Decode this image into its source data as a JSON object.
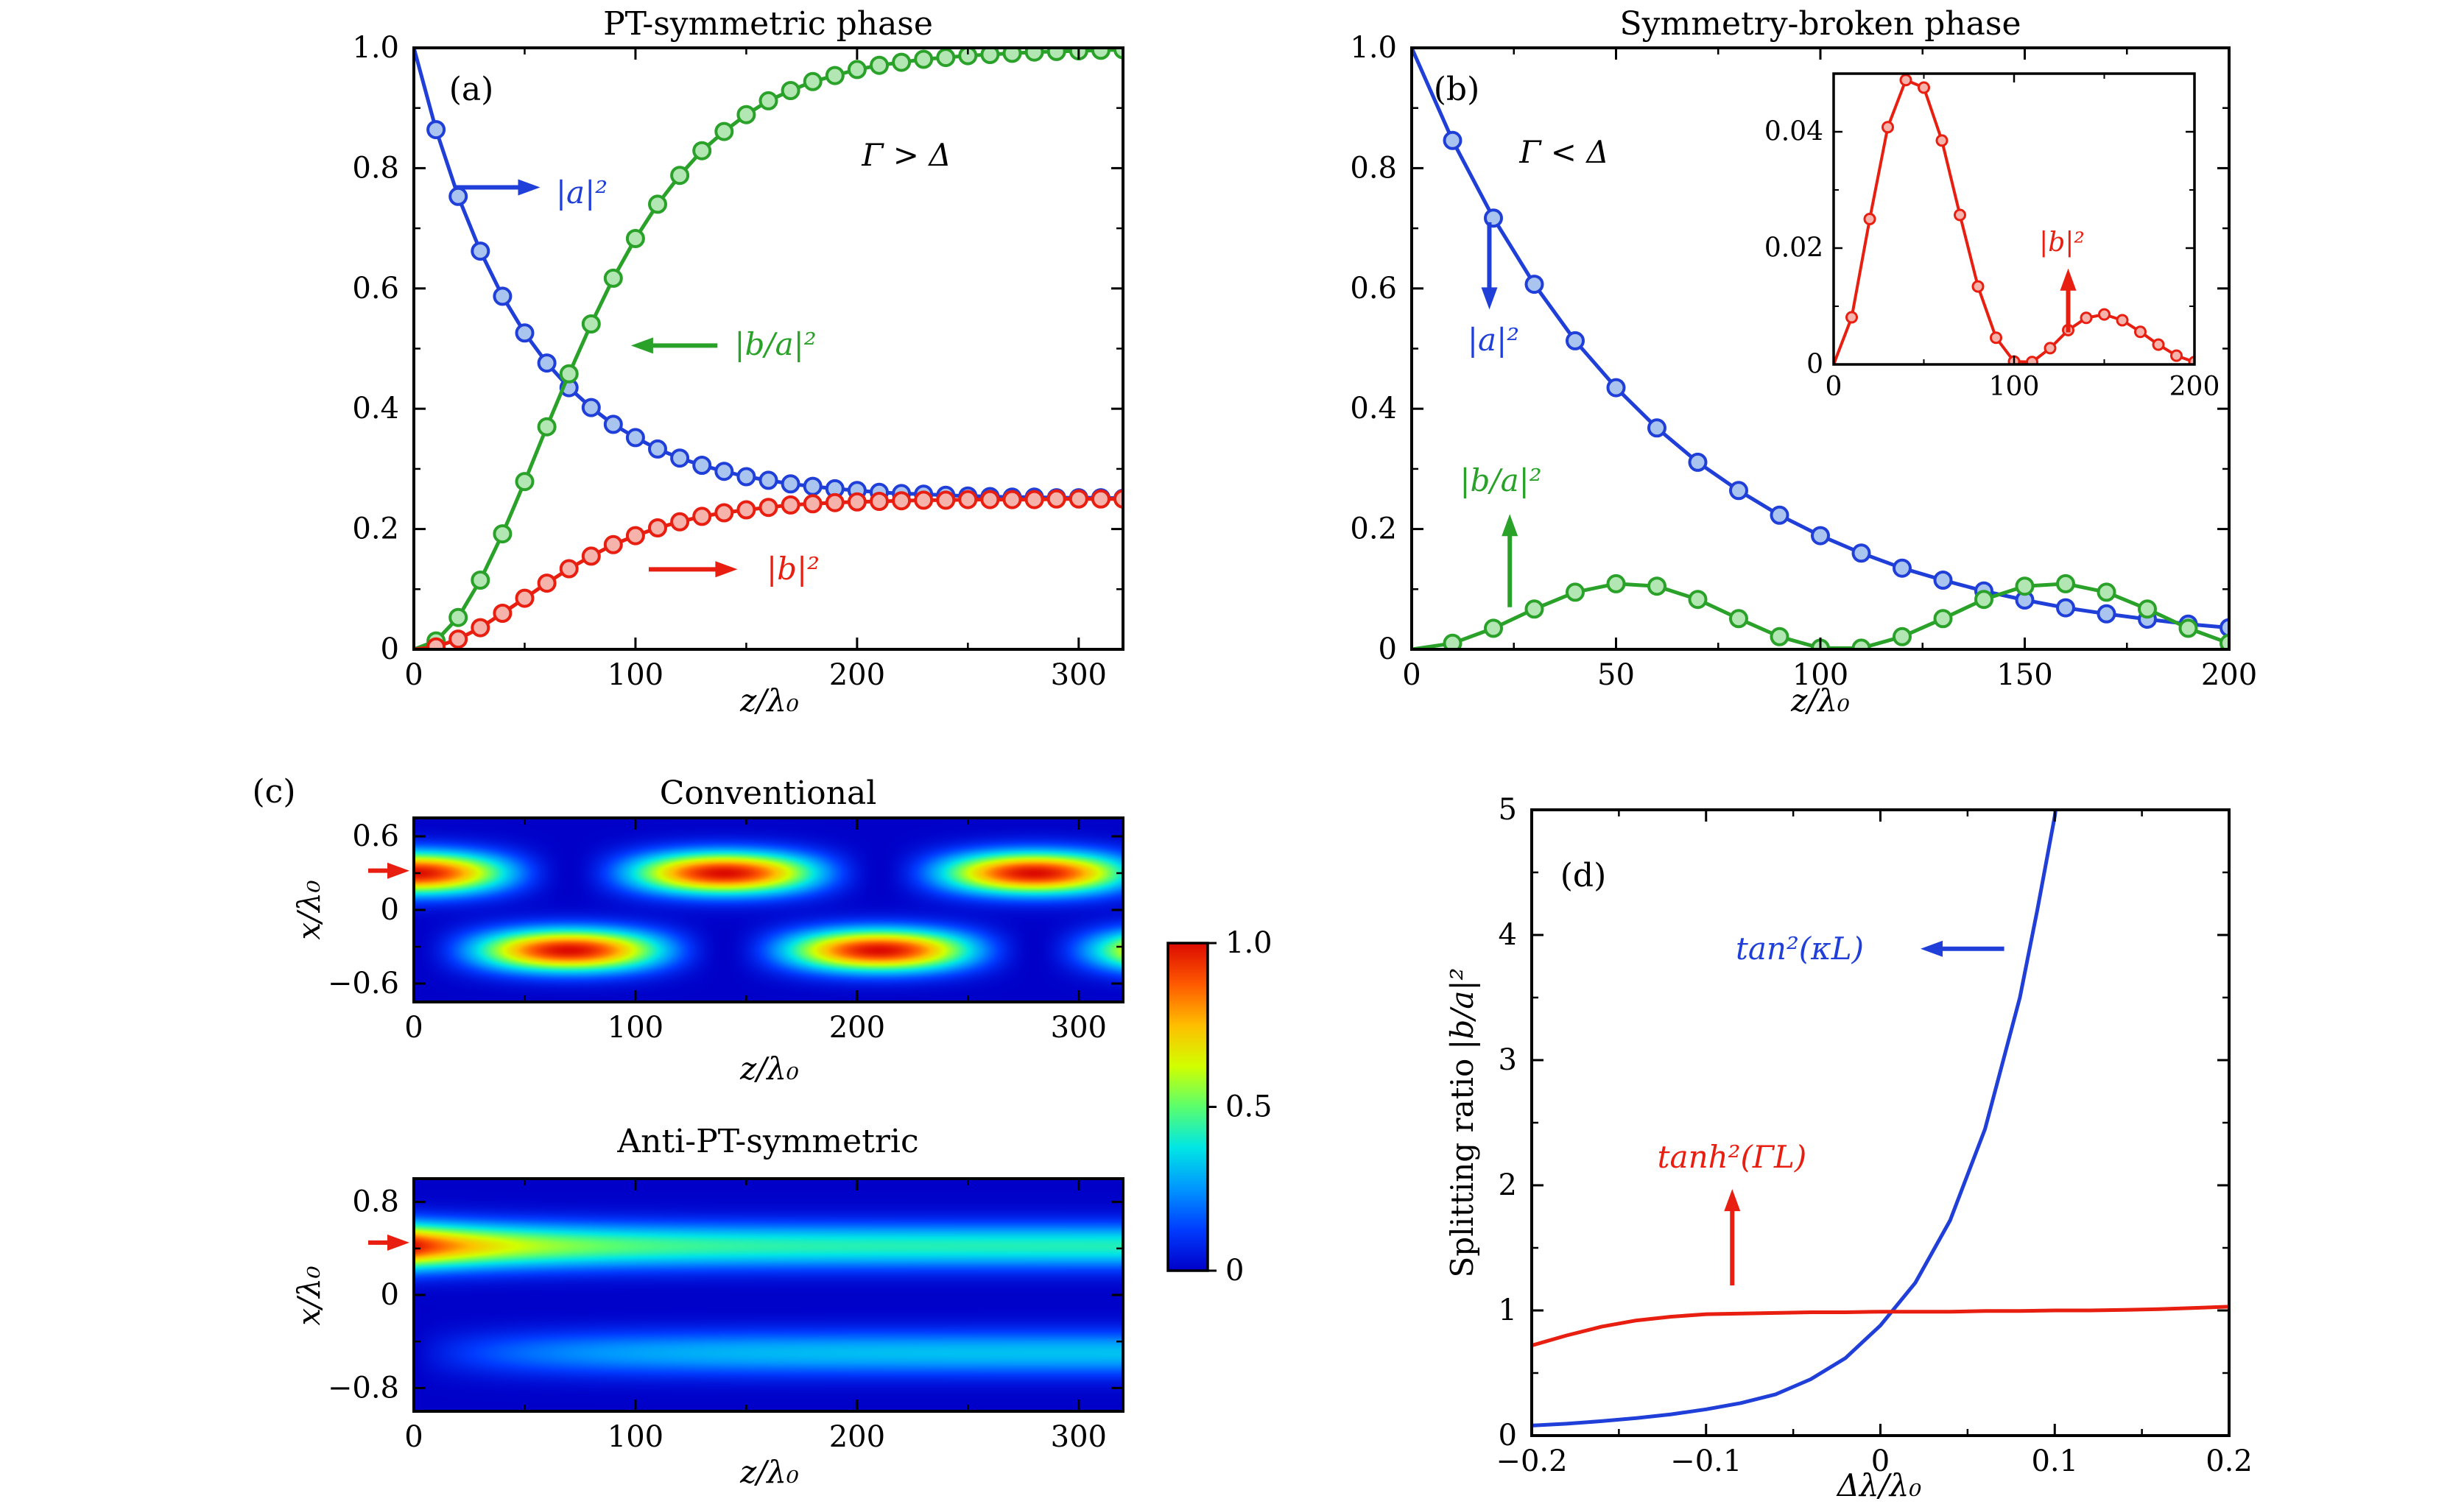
{
  "figure": {
    "panel_labels": {
      "a": "(a)",
      "b": "(b)",
      "c": "(c)",
      "d": "(d)"
    }
  },
  "colors": {
    "blue": "#1f3fd8",
    "blue_fill": "#a9c4ef",
    "green": "#2aa22a",
    "green_fill": "#b2e6b2",
    "red": "#e81e10",
    "red_fill": "#f6b3ab",
    "black": "#000000",
    "frame": "#000000",
    "colormap": [
      [
        0,
        "#0000c8"
      ],
      [
        0.125,
        "#003cff"
      ],
      [
        0.25,
        "#0096ff"
      ],
      [
        0.375,
        "#00e6e6"
      ],
      [
        0.5,
        "#5aff6e"
      ],
      [
        0.625,
        "#d2ff00"
      ],
      [
        0.75,
        "#ffbe00"
      ],
      [
        0.875,
        "#ff5a00"
      ],
      [
        1,
        "#dc0a00"
      ]
    ]
  },
  "chart_data": [
    {
      "panel": "a",
      "type": "line",
      "title": "PT-symmetric phase",
      "xlabel": "z/λ₀",
      "xlim": [
        0,
        320
      ],
      "xticks": [
        0,
        100,
        200,
        300
      ],
      "xticklabels": [
        "0",
        "100",
        "200",
        "300"
      ],
      "ylim": [
        0,
        1
      ],
      "yticks": [
        0,
        0.2,
        0.4,
        0.6,
        0.8,
        1.0
      ],
      "yticklabels": [
        "0",
        "0.2",
        "0.4",
        "0.6",
        "0.8",
        "1.0"
      ],
      "x": [
        0,
        10,
        20,
        30,
        40,
        50,
        60,
        70,
        80,
        90,
        100,
        110,
        120,
        130,
        140,
        150,
        160,
        170,
        180,
        190,
        200,
        210,
        220,
        230,
        240,
        250,
        260,
        270,
        280,
        290,
        300,
        310,
        320
      ],
      "series": [
        {
          "key": "a2",
          "name": "|a|²",
          "color": "blue",
          "fill": "blue_fill",
          "markers": true,
          "values": [
            1.0,
            0.864,
            0.753,
            0.662,
            0.587,
            0.526,
            0.476,
            0.435,
            0.402,
            0.374,
            0.352,
            0.333,
            0.318,
            0.306,
            0.296,
            0.287,
            0.281,
            0.275,
            0.271,
            0.267,
            0.264,
            0.261,
            0.259,
            0.258,
            0.256,
            0.255,
            0.254,
            0.253,
            0.253,
            0.252,
            0.252,
            0.252,
            0.251
          ]
        },
        {
          "key": "ba2",
          "name": "|b/a|²",
          "color": "green",
          "fill": "green_fill",
          "markers": true,
          "values": [
            0,
            0.014,
            0.053,
            0.115,
            0.192,
            0.279,
            0.37,
            0.458,
            0.541,
            0.617,
            0.683,
            0.74,
            0.788,
            0.829,
            0.861,
            0.889,
            0.912,
            0.929,
            0.944,
            0.954,
            0.964,
            0.971,
            0.976,
            0.981,
            0.984,
            0.987,
            0.989,
            0.991,
            0.993,
            0.994,
            0.995,
            0.996,
            0.997
          ]
        },
        {
          "key": "b2",
          "name": "|b|²",
          "color": "red",
          "fill": "red_fill",
          "markers": true,
          "values": [
            0,
            0.004,
            0.017,
            0.036,
            0.06,
            0.085,
            0.11,
            0.134,
            0.155,
            0.174,
            0.189,
            0.202,
            0.212,
            0.221,
            0.227,
            0.232,
            0.236,
            0.24,
            0.242,
            0.244,
            0.245,
            0.246,
            0.247,
            0.248,
            0.248,
            0.249,
            0.249,
            0.249,
            0.249,
            0.25,
            0.25,
            0.25,
            0.25
          ]
        }
      ],
      "annotations": [
        {
          "text": "Γ > Δ",
          "color": "black"
        },
        {
          "text": "|a|²",
          "color": "blue",
          "arrow": {
            "from": [
              18,
              0.768
            ],
            "to": [
              57,
              0.768
            ]
          }
        },
        {
          "text": "|b/a|²",
          "color": "green",
          "arrow": {
            "from": [
              137,
              0.505
            ],
            "to": [
              98,
              0.505
            ]
          }
        },
        {
          "text": "|b|²",
          "color": "red",
          "arrow": {
            "from": [
              106,
              0.133
            ],
            "to": [
              146,
              0.133
            ]
          }
        }
      ]
    },
    {
      "panel": "b",
      "type": "line",
      "title": "Symmetry-broken phase",
      "xlabel": "z/λ₀",
      "xlim": [
        0,
        200
      ],
      "xticks": [
        0,
        50,
        100,
        150,
        200
      ],
      "xticklabels": [
        "0",
        "50",
        "100",
        "150",
        "200"
      ],
      "ylim": [
        0,
        1
      ],
      "yticks": [
        0,
        0.2,
        0.4,
        0.6,
        0.8,
        1.0
      ],
      "yticklabels": [
        "0",
        "0.2",
        "0.4",
        "0.6",
        "0.8",
        "1.0"
      ],
      "x": [
        0,
        10,
        20,
        30,
        40,
        50,
        60,
        70,
        80,
        90,
        100,
        110,
        120,
        130,
        140,
        150,
        160,
        170,
        180,
        190,
        200
      ],
      "series": [
        {
          "key": "a2",
          "name": "|a|²",
          "color": "blue",
          "fill": "blue_fill",
          "markers": true,
          "values": [
            1.0,
            0.846,
            0.717,
            0.607,
            0.513,
            0.435,
            0.368,
            0.311,
            0.264,
            0.223,
            0.189,
            0.16,
            0.135,
            0.115,
            0.097,
            0.082,
            0.069,
            0.059,
            0.05,
            0.042,
            0.036
          ]
        },
        {
          "key": "ba2",
          "name": "|b/a|²",
          "color": "green",
          "fill": "green_fill",
          "markers": true,
          "values": [
            0,
            0.01,
            0.035,
            0.067,
            0.095,
            0.109,
            0.105,
            0.083,
            0.051,
            0.021,
            0.002,
            0.002,
            0.021,
            0.051,
            0.083,
            0.105,
            0.109,
            0.095,
            0.067,
            0.035,
            0.01
          ]
        }
      ],
      "annotations": [
        {
          "text": "Γ < Δ",
          "color": "black"
        },
        {
          "text": "|a|²",
          "color": "blue",
          "arrow": {
            "from": [
              19,
              0.71
            ],
            "to": [
              19,
              0.565
            ]
          }
        },
        {
          "text": "|b/a|²",
          "color": "green",
          "arrow": {
            "from": [
              24,
              0.07
            ],
            "to": [
              24,
              0.225
            ]
          }
        }
      ]
    },
    {
      "panel": "inset",
      "type": "line",
      "title": "",
      "xlabel": "",
      "xlim": [
        0,
        200
      ],
      "xticks": [
        0,
        100,
        200
      ],
      "xticklabels": [
        "0",
        "100",
        "200"
      ],
      "ylim": [
        0,
        0.05
      ],
      "yticks": [
        0,
        0.02,
        0.04
      ],
      "yticklabels": [
        "0",
        "0.02",
        "0.04"
      ],
      "x": [
        0,
        10,
        20,
        30,
        40,
        50,
        60,
        70,
        80,
        90,
        100,
        110,
        120,
        130,
        140,
        150,
        160,
        170,
        180,
        190,
        200
      ],
      "series": [
        {
          "key": "b2",
          "name": "|b|²",
          "color": "red",
          "fill": "red_fill",
          "markers": true,
          "values": [
            0,
            0.0081,
            0.025,
            0.0408,
            0.0489,
            0.0476,
            0.0385,
            0.0257,
            0.0134,
            0.0046,
            0.0005,
            0.0004,
            0.0028,
            0.0059,
            0.008,
            0.0086,
            0.0076,
            0.0056,
            0.0034,
            0.0015,
            0.0004
          ]
        }
      ],
      "annotations": [
        {
          "text": "|b|²",
          "color": "red",
          "arrow": {
            "from": [
              130,
              0.0055
            ],
            "to": [
              130,
              0.0165
            ]
          }
        }
      ]
    },
    {
      "panel": "c1",
      "type": "heatmap",
      "title": "Conventional",
      "xlabel": "z/λ₀",
      "ylabel": "x/λ₀",
      "xlim": [
        0,
        320
      ],
      "xticks": [
        0,
        100,
        200,
        300
      ],
      "xticklabels": [
        "0",
        "100",
        "200",
        "300"
      ],
      "ylim": [
        -0.75,
        0.75
      ],
      "yticks": [
        -0.6,
        0,
        0.6
      ],
      "yticklabels": [
        "−0.6",
        "0",
        "0.6"
      ],
      "zlim": [
        0,
        1
      ],
      "model": {
        "period": 140,
        "top_center": 0.3,
        "bottom_center": -0.33,
        "sigma": 0.12
      },
      "pointer": {
        "x_value": 0.32,
        "color": "red"
      }
    },
    {
      "panel": "c2",
      "type": "heatmap",
      "title": "Anti-PT-symmetric",
      "xlabel": "z/λ₀",
      "ylabel": "x/λ₀",
      "xlim": [
        0,
        320
      ],
      "xticks": [
        0,
        100,
        200,
        300
      ],
      "xticklabels": [
        "0",
        "100",
        "200",
        "300"
      ],
      "ylim": [
        -1,
        1
      ],
      "yticks": [
        -0.8,
        0,
        0.8
      ],
      "yticklabels": [
        "−0.8",
        "0",
        "0.8"
      ],
      "zlim": [
        0,
        1
      ],
      "model": {
        "top_center": 0.42,
        "bottom_center": -0.5,
        "sigma": 0.135,
        "top_base": 0.42,
        "top_amp": 0.58,
        "top_tau": 45,
        "bottom_amp": 0.32,
        "bottom_tau": 55
      },
      "pointer": {
        "x_value": 0.45,
        "color": "red"
      }
    },
    {
      "panel": "d",
      "type": "line",
      "title": "",
      "xlabel": "Δλ/λ₀",
      "ylabel": "Splitting ratio |b/a|²",
      "ylabel_prefix": "Splitting ratio",
      "ylabel_math": "|b/a|²",
      "xlim": [
        -0.2,
        0.2
      ],
      "xticks": [
        -0.2,
        -0.1,
        0,
        0.1,
        0.2
      ],
      "xticklabels": [
        "−0.2",
        "−0.1",
        "0",
        "0.1",
        "0.2"
      ],
      "ylim": [
        0,
        5
      ],
      "yticks": [
        0,
        1,
        2,
        3,
        4,
        5
      ],
      "yticklabels": [
        "0",
        "1",
        "2",
        "3",
        "4",
        "5"
      ],
      "series": [
        {
          "key": "tan",
          "name": "tan²(κL)",
          "color": "blue",
          "markers": false,
          "x": [
            -0.2,
            -0.18,
            -0.16,
            -0.14,
            -0.12,
            -0.1,
            -0.08,
            -0.06,
            -0.04,
            -0.02,
            0,
            0.02,
            0.04,
            0.06,
            0.08,
            0.09,
            0.1,
            0.107
          ],
          "values": [
            0.08,
            0.095,
            0.115,
            0.14,
            0.17,
            0.21,
            0.26,
            0.33,
            0.45,
            0.62,
            0.88,
            1.22,
            1.72,
            2.45,
            3.5,
            4.2,
            4.95,
            5.6
          ]
        },
        {
          "key": "tanh",
          "name": "tanh²(ΓL)",
          "color": "red",
          "markers": false,
          "x": [
            -0.2,
            -0.18,
            -0.16,
            -0.14,
            -0.12,
            -0.1,
            -0.08,
            -0.06,
            -0.04,
            -0.02,
            0,
            0.02,
            0.04,
            0.06,
            0.08,
            0.1,
            0.12,
            0.14,
            0.16,
            0.18,
            0.2
          ],
          "values": [
            0.72,
            0.8,
            0.87,
            0.92,
            0.95,
            0.97,
            0.975,
            0.98,
            0.985,
            0.985,
            0.99,
            0.99,
            0.99,
            0.995,
            0.995,
            1.0,
            1.0,
            1.005,
            1.01,
            1.02,
            1.03
          ]
        }
      ],
      "annotations": [
        {
          "text": "tan²(κL)",
          "color": "blue",
          "arrow": {
            "from": [
              0.071,
              3.89
            ],
            "to": [
              0.023,
              3.89
            ]
          }
        },
        {
          "text": "tanh²(ΓL)",
          "color": "red",
          "arrow": {
            "from": [
              -0.085,
              1.2
            ],
            "to": [
              -0.085,
              1.97
            ]
          }
        }
      ]
    },
    {
      "panel": "cbar",
      "type": "colorbar",
      "ticks": [
        1.0,
        0.5,
        0
      ],
      "ticklabels": [
        "1.0",
        "0.5",
        "0"
      ],
      "zlim": [
        0,
        1
      ]
    }
  ]
}
